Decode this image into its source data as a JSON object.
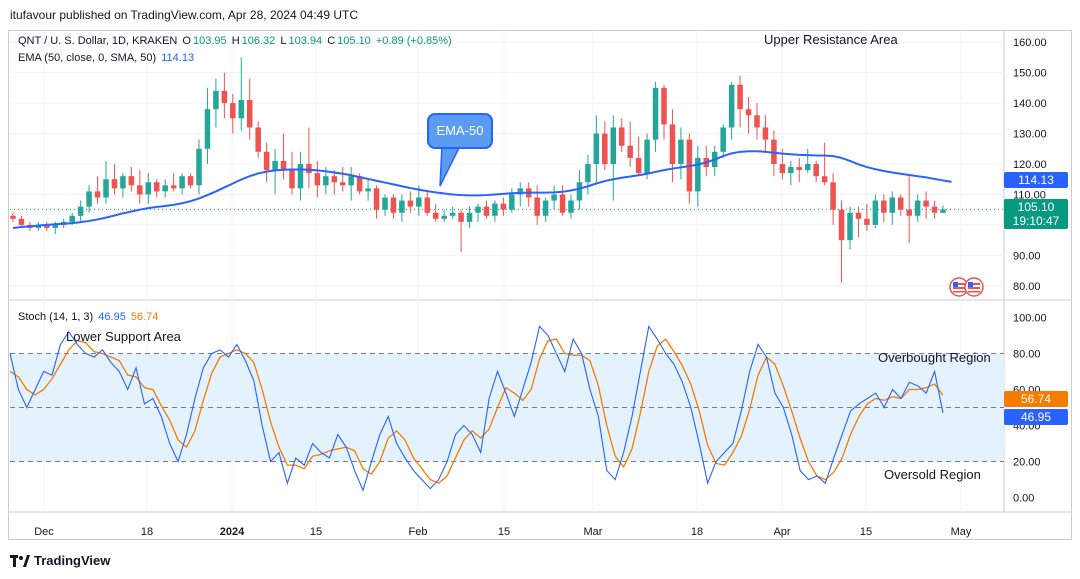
{
  "header": {
    "publisher_text": "itufavour published on TradingView.com, Apr 28, 2024 04:49 UTC"
  },
  "legend": {
    "symbol": "QNT / U. S. Dollar, 1D, KRAKEN",
    "o_label": "O",
    "o_value": "103.95",
    "h_label": "H",
    "h_value": "106.32",
    "l_label": "L",
    "l_value": "103.94",
    "c_label": "C",
    "c_value": "105.10",
    "change": "+0.89 (+0.85%)",
    "ema_label": "EMA (50, close, 0, SMA, 50)",
    "ema_value": "114.13",
    "stoch_label": "Stoch (14, 1, 3)",
    "stoch_k": "46.95",
    "stoch_d": "56.74"
  },
  "annotations": {
    "upper_resistance": "Upper Resistance Area",
    "lower_support": "Lower Support Area",
    "overbought": "Overbought Region",
    "oversold": "Oversold Region",
    "ema_callout": "EMA-50"
  },
  "price_tags": {
    "ema": "114.13",
    "close": "105.10",
    "countdown": "19:10:47",
    "stoch_d": "56.74",
    "stoch_k": "46.95"
  },
  "colors": {
    "up": "#26a69a",
    "down": "#ef5350",
    "ema": "#2962ff",
    "stoch_k": "#2962ff",
    "stoch_d": "#f57c00",
    "band": "#e3f2fd"
  },
  "footer": {
    "brand": "TradingView"
  },
  "chart_data": [
    {
      "type": "candlestick",
      "title": "QNT / U. S. Dollar, 1D, KRAKEN",
      "x_ticks": [
        "Dec",
        "18",
        "2024",
        "15",
        "Feb",
        "15",
        "Mar",
        "18",
        "Apr",
        "15",
        "May"
      ],
      "y_ticks": [
        "80.00",
        "90.00",
        "100.00",
        "110.00",
        "120.00",
        "130.00",
        "140.00",
        "150.00",
        "160.00"
      ],
      "ylim": [
        76,
        164
      ],
      "series": [
        {
          "name": "EMA (50, close, 0, SMA, 50)",
          "values": [
            99,
            99.3,
            99.5,
            99.8,
            100,
            100.2,
            100.4,
            100.6,
            100.9,
            101.3,
            101.8,
            102.4,
            103.1,
            103.8,
            104.4,
            105,
            105.5,
            105.9,
            106.2,
            106.6,
            107.1,
            107.8,
            108.7,
            109.8,
            111,
            112.3,
            113.6,
            114.9,
            116,
            116.9,
            117.5,
            117.9,
            118.1,
            118.2,
            118.2,
            118.1,
            117.9,
            117.6,
            117.2,
            116.8,
            116.3,
            115.7,
            115.1,
            114.5,
            113.9,
            113.3,
            112.7,
            112.1,
            111.6,
            111.1,
            110.7,
            110.3,
            110,
            109.8,
            109.7,
            109.7,
            109.8,
            110,
            110.2,
            110.4,
            110.5,
            110.6,
            110.6,
            110.6,
            110.7,
            110.9,
            111.3,
            111.9,
            112.7,
            113.6,
            114.4,
            115,
            115.5,
            115.9,
            116.3,
            116.8,
            117.4,
            118,
            118.5,
            118.9,
            119.3,
            119.8,
            120.5,
            121.5,
            122.6,
            123.5,
            124,
            124.2,
            124.2,
            124,
            123.7,
            123.4,
            123.2,
            123,
            122.9,
            122.8,
            122.8,
            122.6,
            122,
            121,
            119.9,
            119,
            118.3,
            117.7,
            117.2,
            116.8,
            116.4,
            116,
            115.6,
            115.1,
            114.6,
            114.13
          ]
        },
        {
          "name": "QNT / U. S. Dollar",
          "ohlc": [
            [
              103,
              104,
              101,
              102
            ],
            [
              102,
              103,
              99,
              100
            ],
            [
              100,
              101,
              98,
              99
            ],
            [
              99,
              101,
              98,
              100
            ],
            [
              100,
              101,
              98,
              99
            ],
            [
              99,
              101,
              97,
              100
            ],
            [
              100,
              102,
              99,
              101
            ],
            [
              101,
              104,
              100,
              103
            ],
            [
              103,
              108,
              101,
              106
            ],
            [
              106,
              113,
              104,
              111
            ],
            [
              111,
              116,
              107,
              109
            ],
            [
              109,
              121,
              107,
              115
            ],
            [
              115,
              120,
              110,
              112
            ],
            [
              112,
              117,
              109,
              116
            ],
            [
              116,
              119,
              111,
              113
            ],
            [
              113,
              118,
              107,
              110
            ],
            [
              110,
              117,
              107,
              114
            ],
            [
              114,
              115,
              109,
              111
            ],
            [
              111,
              115,
              109,
              113
            ],
            [
              113,
              117,
              111,
              112
            ],
            [
              112,
              117,
              110,
              116
            ],
            [
              116,
              117,
              112,
              113
            ],
            [
              113,
              128,
              110,
              125
            ],
            [
              125,
              145,
              120,
              138
            ],
            [
              138,
              148,
              132,
              144
            ],
            [
              144,
              150,
              135,
              140
            ],
            [
              140,
              143,
              130,
              135
            ],
            [
              135,
              155,
              131,
              141
            ],
            [
              141,
              148,
              128,
              132
            ],
            [
              132,
              134,
              122,
              124
            ],
            [
              124,
              127,
              114,
              118
            ],
            [
              118,
              125,
              110,
              121
            ],
            [
              121,
              130,
              115,
              118
            ],
            [
              118,
              124,
              110,
              112
            ],
            [
              112,
              124,
              108,
              120
            ],
            [
              120,
              132,
              112,
              117
            ],
            [
              117,
              121,
              109,
              113
            ],
            [
              113,
              119,
              110,
              116
            ],
            [
              116,
              118,
              110,
              114
            ],
            [
              114,
              119,
              111,
              113
            ],
            [
              113,
              119,
              108,
              116
            ],
            [
              116,
              117,
              110,
              111
            ],
            [
              111,
              115,
              108,
              112
            ],
            [
              112,
              113,
              102,
              105
            ],
            [
              105,
              110,
              103,
              109
            ],
            [
              109,
              110,
              102,
              104
            ],
            [
              104,
              110,
              101,
              108
            ],
            [
              108,
              111,
              104,
              106
            ],
            [
              106,
              113,
              103,
              109
            ],
            [
              109,
              111,
              103,
              104
            ],
            [
              104,
              107,
              101,
              102
            ],
            [
              102,
              105,
              101,
              103
            ],
            [
              103,
              106,
              102,
              104
            ],
            [
              104,
              105,
              91,
              101
            ],
            [
              101,
              106,
              99,
              104
            ],
            [
              104,
              107,
              101,
              106
            ],
            [
              106,
              108,
              102,
              103
            ],
            [
              103,
              108,
              101,
              107
            ],
            [
              107,
              109,
              103,
              105
            ],
            [
              105,
              112,
              104,
              110
            ],
            [
              110,
              114,
              106,
              112
            ],
            [
              112,
              114,
              106,
              109
            ],
            [
              109,
              113,
              100,
              103
            ],
            [
              103,
              109,
              101,
              108
            ],
            [
              108,
              113,
              105,
              110
            ],
            [
              110,
              113,
              103,
              104
            ],
            [
              104,
              110,
              102,
              108
            ],
            [
              108,
              118,
              105,
              114
            ],
            [
              114,
              123,
              110,
              120
            ],
            [
              120,
              136,
              114,
              130
            ],
            [
              130,
              134,
              118,
              120
            ],
            [
              120,
              136,
              108,
              132
            ],
            [
              132,
              135,
              124,
              126
            ],
            [
              126,
              134,
              119,
              122
            ],
            [
              122,
              129,
              116,
              117
            ],
            [
              117,
              130,
              115,
              128
            ],
            [
              128,
              147,
              124,
              145
            ],
            [
              145,
              146,
              128,
              133
            ],
            [
              133,
              138,
              114,
              120
            ],
            [
              120,
              132,
              115,
              128
            ],
            [
              128,
              130,
              107,
              111
            ],
            [
              111,
              126,
              106,
              122
            ],
            [
              122,
              126,
              116,
              119
            ],
            [
              119,
              126,
              116,
              124
            ],
            [
              124,
              133,
              122,
              132
            ],
            [
              132,
              147,
              128,
              146
            ],
            [
              146,
              149,
              132,
              138
            ],
            [
              138,
              142,
              130,
              136
            ],
            [
              136,
              140,
              128,
              132
            ],
            [
              132,
              136,
              124,
              128
            ],
            [
              128,
              131,
              116,
              120
            ],
            [
              120,
              125,
              115,
              117
            ],
            [
              117,
              121,
              113,
              119
            ],
            [
              119,
              122,
              114,
              118
            ],
            [
              118,
              125,
              117,
              120
            ],
            [
              120,
              121,
              114,
              116
            ],
            [
              116,
              127,
              113,
              114
            ],
            [
              114,
              117,
              100,
              105
            ],
            [
              105,
              108,
              81,
              95
            ],
            [
              95,
              106,
              92,
              104
            ],
            [
              104,
              106,
              96,
              102
            ],
            [
              102,
              107,
              98,
              100
            ],
            [
              100,
              110,
              99,
              108
            ],
            [
              108,
              110,
              101,
              104
            ],
            [
              104,
              111,
              100,
              109
            ],
            [
              109,
              110,
              103,
              105
            ],
            [
              105,
              116,
              94,
              103
            ],
            [
              103,
              110,
              101,
              108
            ],
            [
              108,
              111,
              102,
              106
            ],
            [
              106,
              108,
              102,
              104
            ],
            [
              103.95,
              106.32,
              103.94,
              105.1
            ]
          ]
        }
      ]
    },
    {
      "type": "line",
      "title": "Stoch (14, 1, 3)",
      "y_ticks": [
        "0.00",
        "20.00",
        "40.00",
        "60.00",
        "80.00",
        "100.00"
      ],
      "ylim": [
        -8,
        108
      ],
      "bands": {
        "upper": 80,
        "middle": 50,
        "lower": 20
      },
      "series": [
        {
          "name": "%K",
          "values": [
            80,
            60,
            50,
            60,
            70,
            68,
            85,
            92,
            85,
            80,
            78,
            82,
            75,
            70,
            60,
            72,
            52,
            55,
            45,
            30,
            20,
            35,
            55,
            72,
            80,
            82,
            78,
            85,
            76,
            65,
            40,
            20,
            25,
            8,
            22,
            18,
            30,
            25,
            22,
            35,
            28,
            15,
            4,
            20,
            35,
            45,
            30,
            22,
            15,
            10,
            5,
            10,
            20,
            35,
            40,
            35,
            25,
            55,
            70,
            58,
            45,
            60,
            75,
            95,
            90,
            80,
            70,
            88,
            80,
            60,
            45,
            15,
            10,
            25,
            45,
            70,
            95,
            88,
            80,
            74,
            64,
            50,
            30,
            8,
            20,
            25,
            30,
            48,
            70,
            85,
            78,
            58,
            50,
            35,
            15,
            10,
            12,
            8,
            22,
            35,
            48,
            52,
            55,
            58,
            50,
            60,
            55,
            64,
            62,
            58,
            70,
            46.95
          ]
        },
        {
          "name": "%D",
          "values": [
            70,
            67,
            60,
            57,
            60,
            66,
            74,
            82,
            87,
            86,
            81,
            80,
            78,
            76,
            68,
            67,
            61,
            60,
            51,
            43,
            32,
            28,
            37,
            54,
            69,
            78,
            80,
            82,
            80,
            75,
            60,
            42,
            28,
            18,
            18,
            16,
            23,
            24,
            26,
            27,
            28,
            26,
            16,
            13,
            20,
            33,
            37,
            32,
            22,
            16,
            10,
            8,
            12,
            22,
            32,
            37,
            33,
            38,
            50,
            61,
            58,
            54,
            60,
            77,
            87,
            88,
            80,
            79,
            79,
            76,
            62,
            40,
            23,
            17,
            27,
            47,
            70,
            84,
            88,
            81,
            73,
            63,
            48,
            29,
            19,
            18,
            25,
            34,
            49,
            68,
            78,
            74,
            62,
            48,
            33,
            20,
            12,
            10,
            14,
            22,
            35,
            45,
            52,
            55,
            54,
            56,
            55,
            60,
            60,
            61,
            63,
            56.74
          ]
        }
      ]
    }
  ]
}
